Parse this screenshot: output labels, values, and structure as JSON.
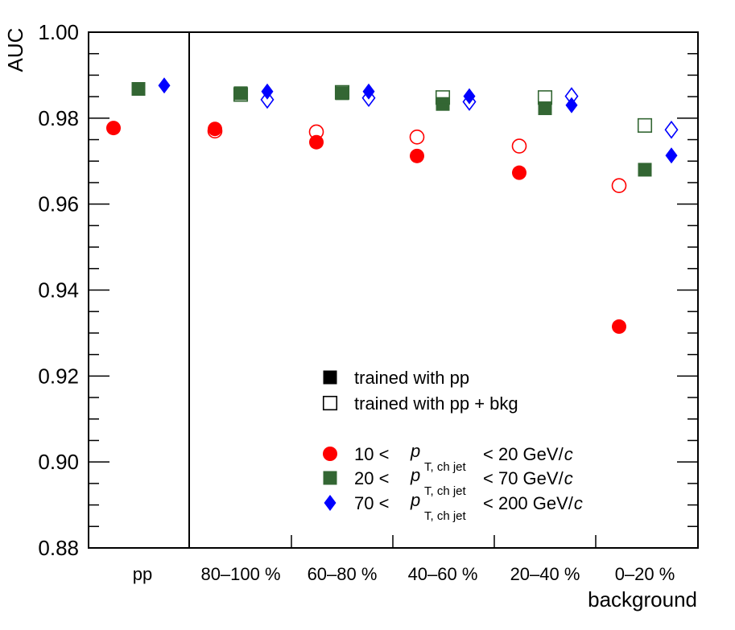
{
  "chart_data": {
    "type": "scatter",
    "ylabel": "AUC",
    "xlabel": "background",
    "ylim": [
      0.88,
      1.0
    ],
    "y_ticks": [
      "0.88",
      "0.90",
      "0.92",
      "0.94",
      "0.96",
      "0.98",
      "1.00"
    ],
    "categories": [
      "pp",
      "80–100 %",
      "60–80 %",
      "40–60 %",
      "20–40 %",
      "0–20 %"
    ],
    "colors": {
      "low": "#ff0000",
      "mid": "#336633",
      "high": "#0000ff"
    },
    "series": [
      {
        "name": "10–20 GeV/c trained with pp",
        "group": "low",
        "marker": "circle",
        "filled": true,
        "values": [
          0.9777,
          0.9775,
          0.9744,
          0.9712,
          0.9673,
          0.9315
        ]
      },
      {
        "name": "10–20 GeV/c trained with pp + bkg",
        "group": "low",
        "marker": "circle",
        "filled": false,
        "values": [
          null,
          0.977,
          0.9768,
          0.9756,
          0.9735,
          0.9643
        ]
      },
      {
        "name": "20–70 GeV/c trained with pp",
        "group": "mid",
        "marker": "square",
        "filled": true,
        "values": [
          0.9868,
          0.9858,
          0.9858,
          0.9833,
          0.9823,
          0.968
        ]
      },
      {
        "name": "20–70 GeV/c trained with pp + bkg",
        "group": "mid",
        "marker": "square",
        "filled": false,
        "values": [
          null,
          0.9855,
          0.986,
          0.9848,
          0.9848,
          0.9783
        ]
      },
      {
        "name": "70–200 GeV/c trained with pp",
        "group": "high",
        "marker": "diamond",
        "filled": true,
        "values": [
          0.9876,
          0.9862,
          0.9862,
          0.9851,
          0.983,
          0.9713
        ]
      },
      {
        "name": "70–200 GeV/c trained with pp + bkg",
        "group": "high",
        "marker": "diamond",
        "filled": false,
        "values": [
          null,
          0.9843,
          0.9847,
          0.9838,
          0.9851,
          0.9773
        ]
      }
    ],
    "legend": {
      "training": [
        {
          "marker": "square",
          "filled": true,
          "label": "trained with pp"
        },
        {
          "marker": "square",
          "filled": false,
          "label": "trained with pp + bkg"
        }
      ],
      "pt_bins": [
        {
          "marker": "circle",
          "group": "low",
          "low": "10 <",
          "high": "< 20 GeV/",
          "unit": "c"
        },
        {
          "marker": "square",
          "group": "mid",
          "low": "20 <",
          "high": "< 70 GeV/",
          "unit": "c"
        },
        {
          "marker": "diamond",
          "group": "high",
          "low": "70 <",
          "high": "< 200 GeV/",
          "unit": "c"
        }
      ],
      "pt_symbol": "p",
      "pt_subscript": "T, ch jet"
    }
  }
}
